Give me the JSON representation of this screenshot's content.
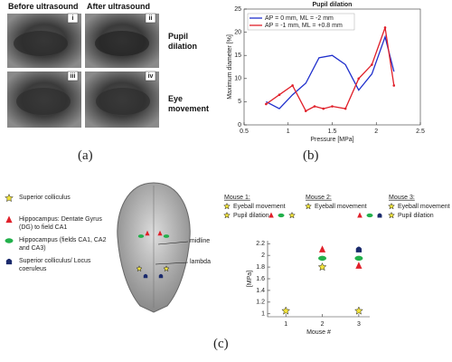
{
  "panel_a": {
    "column_labels": [
      "Before ultrasound",
      "After ultrasound"
    ],
    "image_labels": [
      "i",
      "ii",
      "iii",
      "iv"
    ],
    "row_labels": [
      "Pupil dilation",
      "Eye movement"
    ]
  },
  "panel_c": {
    "brain_labels": [
      "midline",
      "lambda"
    ],
    "mouse_legend": [
      {
        "title": "Mouse 1:",
        "rows": [
          "Eyeball movement",
          "Pupil dilation"
        ]
      },
      {
        "title": "Mouse 2:",
        "rows": [
          "Eyeball movement"
        ]
      },
      {
        "title": "Mouse 3:",
        "rows": [
          "Eyeball movement",
          "Pupil dilation"
        ]
      }
    ]
  },
  "captions": [
    "(a)",
    "(b)",
    "(c)"
  ],
  "chart_data": [
    {
      "type": "line",
      "title": "Pupil dilation",
      "x_label": "Pressure [MPa]",
      "y_label": "Maximum diameter [%]",
      "xlim": [
        0.5,
        2.5
      ],
      "xticks": [
        0.5,
        1,
        1.5,
        2,
        2.5
      ],
      "ylim": [
        0,
        25
      ],
      "yticks": [
        0,
        5,
        10,
        15,
        20,
        25
      ],
      "legend": "upper left",
      "series": [
        {
          "name": "AP = 0 mm, ML = -2 mm",
          "color": "#1f2fcc",
          "x": [
            0.75,
            0.9,
            1.05,
            1.2,
            1.35,
            1.5,
            1.65,
            1.8,
            1.95,
            2.1,
            2.2
          ],
          "values": [
            5,
            3.5,
            6.5,
            9,
            14.5,
            15,
            13,
            7.5,
            11,
            19,
            11.5
          ]
        },
        {
          "name": "AP = -1 mm, ML = +0.8 mm",
          "color": "#e0202a",
          "marker": "dot",
          "x": [
            0.75,
            0.9,
            1.05,
            1.2,
            1.3,
            1.4,
            1.5,
            1.65,
            1.8,
            1.95,
            2.1,
            2.2
          ],
          "values": [
            4.5,
            6.5,
            8.5,
            3,
            4,
            3.5,
            4,
            3.5,
            10,
            13,
            21,
            8.5
          ]
        }
      ]
    },
    {
      "type": "scatter",
      "x_label": "Mouse #",
      "y_label": "[MPa]",
      "xlim": [
        0.5,
        3.3
      ],
      "xticks": [
        1,
        2,
        3
      ],
      "ylim": [
        0.95,
        2.25
      ],
      "yticks": [
        1,
        1.2,
        1.4,
        1.6,
        1.8,
        2,
        2.2
      ],
      "legend": "left",
      "series": [
        {
          "name": "Superior colliculus",
          "marker": "star",
          "color": "#f2e33a",
          "x": [
            1,
            2,
            3
          ],
          "values": [
            1.05,
            1.8,
            1.05
          ]
        },
        {
          "name": "Hippocampus: Dentate Gyrus (DG) to field CA1",
          "marker": "triangle",
          "color": "#e0202a",
          "x": [
            2,
            3
          ],
          "values": [
            2.1,
            1.82
          ]
        },
        {
          "name": "Hippocampus (fields CA1, CA2 and CA3)",
          "marker": "ellipse",
          "color": "#22b04b",
          "x": [
            2,
            3
          ],
          "values": [
            1.95,
            1.95
          ]
        },
        {
          "name": "Superior colliculus/ Locus coeruleus",
          "marker": "bullet",
          "color": "#1a2a6c",
          "x": [
            3
          ],
          "values": [
            2.1
          ]
        }
      ]
    }
  ]
}
